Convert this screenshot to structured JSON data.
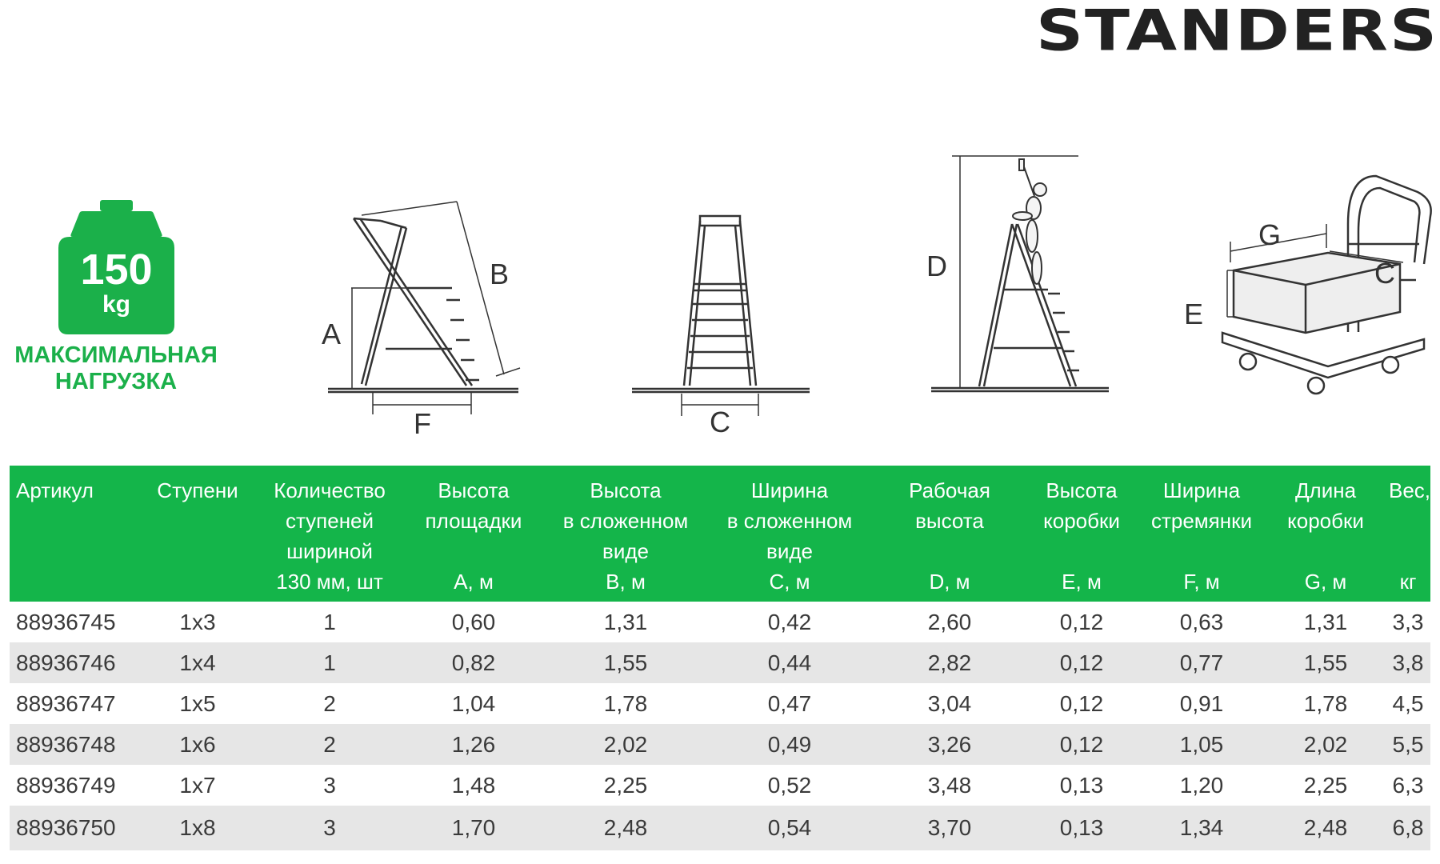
{
  "brand": "STANDERS",
  "load_badge": {
    "value": "150",
    "unit": "kg",
    "caption_line1": "МАКСИМАЛЬНАЯ",
    "caption_line2": "НАГРУЗКА",
    "color": "#1bb04a"
  },
  "diagram_labels": {
    "a": "A",
    "b": "B",
    "c": "C",
    "d": "D",
    "e": "E",
    "f": "F",
    "g": "G"
  },
  "table": {
    "header_color": "#14b54a",
    "stripe_color": "#e6e6e6",
    "columns": [
      {
        "top": "Артикул",
        "unit": ""
      },
      {
        "top": "Ступени",
        "unit": ""
      },
      {
        "top": "Количество\nступеней\nшириной\n130 мм, шт",
        "unit": ""
      },
      {
        "top": "Высота\nплощадки",
        "unit": "A, м"
      },
      {
        "top": "Высота\nв сложенном\nвиде",
        "unit": "B, м"
      },
      {
        "top": "Ширина\nв сложенном\nвиде",
        "unit": "C, м"
      },
      {
        "top": "Рабочая\nвысота",
        "unit": "D, м"
      },
      {
        "top": "Высота\nкоробки",
        "unit": "E, м"
      },
      {
        "top": "Ширина\nстремянки",
        "unit": "F, м"
      },
      {
        "top": "Длина\nкоробки",
        "unit": "G, м"
      },
      {
        "top": "Вес,",
        "unit": "кг"
      }
    ],
    "rows": [
      [
        "88936745",
        "1x3",
        "1",
        "0,60",
        "1,31",
        "0,42",
        "2,60",
        "0,12",
        "0,63",
        "1,31",
        "3,3"
      ],
      [
        "88936746",
        "1x4",
        "1",
        "0,82",
        "1,55",
        "0,44",
        "2,82",
        "0,12",
        "0,77",
        "1,55",
        "3,8"
      ],
      [
        "88936747",
        "1x5",
        "2",
        "1,04",
        "1,78",
        "0,47",
        "3,04",
        "0,12",
        "0,91",
        "1,78",
        "4,5"
      ],
      [
        "88936748",
        "1x6",
        "2",
        "1,26",
        "2,02",
        "0,49",
        "3,26",
        "0,12",
        "1,05",
        "2,02",
        "5,5"
      ],
      [
        "88936749",
        "1x7",
        "3",
        "1,48",
        "2,25",
        "0,52",
        "3,48",
        "0,13",
        "1,20",
        "2,25",
        "6,3"
      ],
      [
        "88936750",
        "1x8",
        "3",
        "1,70",
        "2,48",
        "0,54",
        "3,70",
        "0,13",
        "1,34",
        "2,48",
        "6,8"
      ]
    ]
  }
}
